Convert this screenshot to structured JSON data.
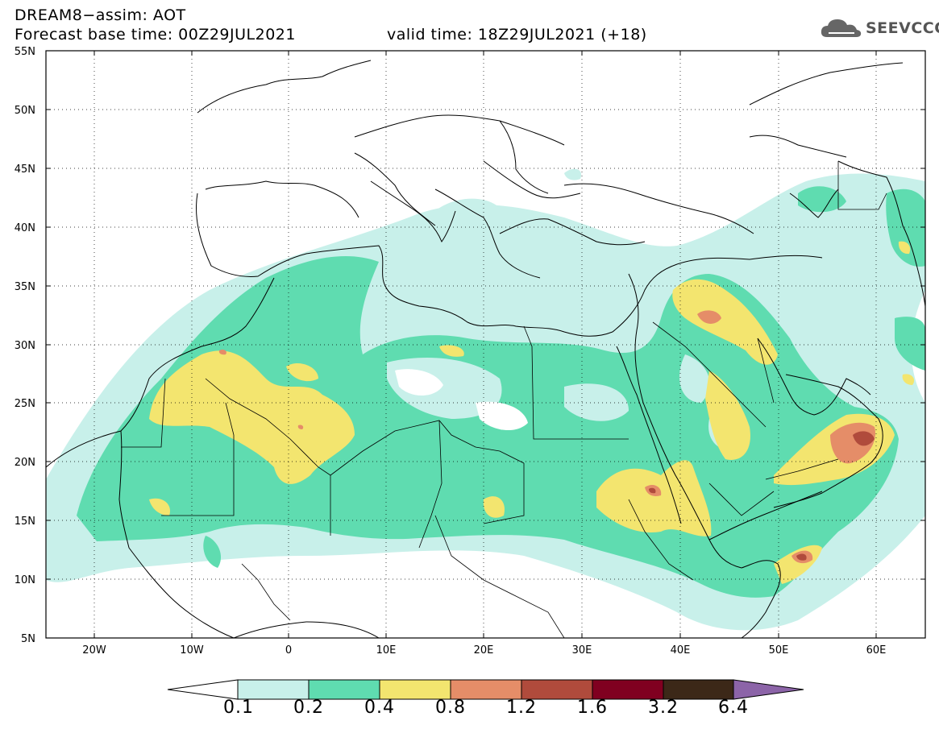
{
  "header": {
    "line1": "DREAM8−assim: AOT",
    "line2": "Forecast base time: 00Z29JUL2021",
    "valid": "valid time: 18Z29JUL2021 (+18)"
  },
  "logo": {
    "text": "SEEVCCC",
    "icon": "cloud-icon"
  },
  "map": {
    "variable": "Aerosol optical thickness (dust)",
    "lon_range": [
      -25,
      65
    ],
    "lat_range": [
      5,
      55
    ],
    "lon_ticks": [
      "20W",
      "10W",
      "0",
      "10E",
      "20E",
      "30E",
      "40E",
      "50E",
      "60E"
    ],
    "lat_ticks": [
      "55N",
      "50N",
      "45N",
      "40N",
      "35N",
      "30N",
      "25N",
      "20N",
      "15N",
      "10N",
      "5N"
    ],
    "grid": "dotted"
  },
  "colorbar": {
    "levels": [
      "0.1",
      "0.2",
      "0.4",
      "0.8",
      "1.2",
      "1.6",
      "3.2",
      "6.4"
    ],
    "colors": [
      "#c8f0ea",
      "#5fdcb0",
      "#f3e56f",
      "#e58d68",
      "#b04b3c",
      "#800020",
      "#3c2818",
      "#8c64a8"
    ],
    "below_color": "#ffffff"
  }
}
